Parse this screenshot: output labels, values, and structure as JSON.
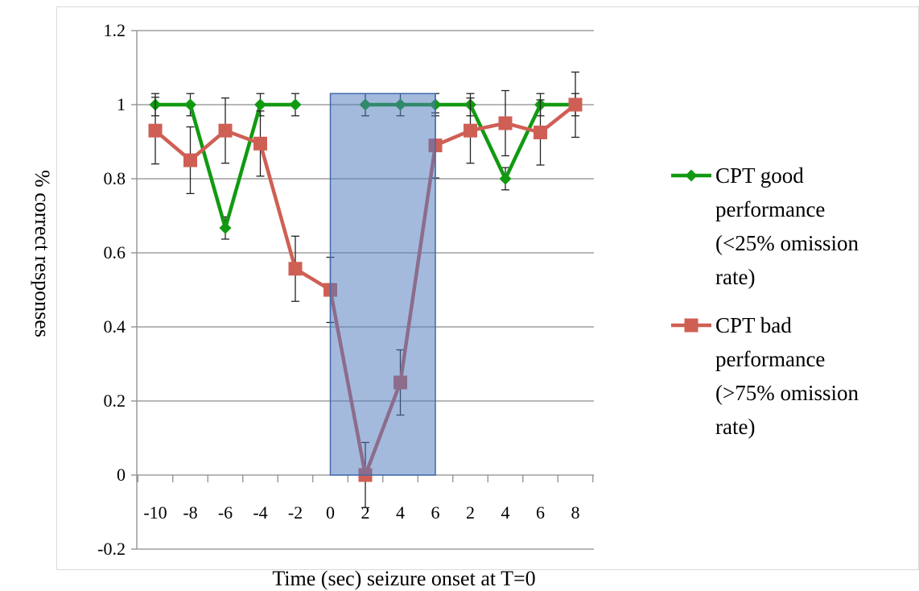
{
  "chart_data": {
    "type": "line",
    "title": "",
    "xlabel": "Time (sec) seizure onset at T=0",
    "ylabel": "% correct responses",
    "ylim": [
      -0.2,
      1.2
    ],
    "yticks": [
      "-0.2",
      "0",
      "0.2",
      "0.4",
      "0.6",
      "0.8",
      "1",
      "1.2"
    ],
    "categories": [
      "-10",
      "-8",
      "-6",
      "-4",
      "-2",
      "0",
      "2",
      "4",
      "6",
      "2",
      "4",
      "6",
      "8"
    ],
    "grid": true,
    "legend_position": "right",
    "highlight": {
      "from_index": 5,
      "to_index": 8,
      "y_top": 1.03,
      "y_bottom": 0,
      "color": "#4f7bbd"
    },
    "series": [
      {
        "name": "CPT good performance (<25% omission rate)",
        "legend_lines": [
          "CPT good",
          "performance",
          "(<25% omission",
          "rate)"
        ],
        "color": "#119a11",
        "marker": "diamond",
        "values": [
          1,
          1,
          0.667,
          1,
          1,
          null,
          1,
          1,
          1,
          1,
          0.8,
          1,
          1
        ],
        "error": [
          0.03,
          0.03,
          0.03,
          0.03,
          0.03,
          null,
          0.03,
          0.03,
          0.03,
          0.03,
          0.03,
          0.03,
          0.03
        ]
      },
      {
        "name": "CPT bad performance (>75% omission rate)",
        "legend_lines": [
          "CPT bad",
          "performance",
          "(>75% omission",
          "rate)"
        ],
        "color": "#cf5f55",
        "marker": "square",
        "values": [
          0.93,
          0.85,
          0.93,
          0.895,
          0.557,
          0.5,
          0.0,
          0.25,
          0.89,
          0.93,
          0.95,
          0.925,
          1.0
        ],
        "error": [
          0.09,
          0.09,
          0.088,
          0.088,
          0.088,
          0.088,
          0.088,
          0.088,
          0.088,
          0.088,
          0.088,
          0.088,
          0.088
        ]
      }
    ]
  }
}
